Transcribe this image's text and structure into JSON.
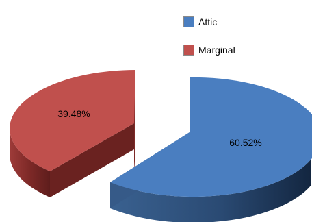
{
  "chart_data": {
    "type": "pie",
    "categories": [
      "Attic",
      "Marginal"
    ],
    "values": [
      60.52,
      39.48
    ],
    "data_labels": [
      "60.52%",
      "39.48%"
    ],
    "colors": [
      "#4a7ec0",
      "#c0504d"
    ],
    "legend_position": "top-right",
    "style": "3d-exploded"
  }
}
